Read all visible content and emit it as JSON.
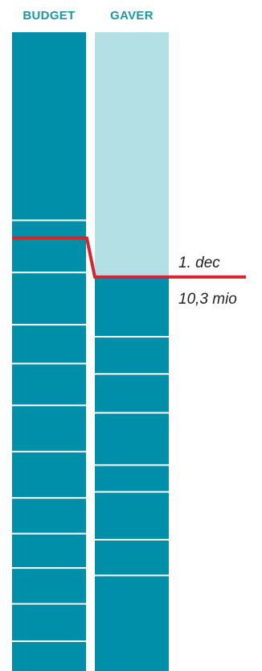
{
  "chart_data": {
    "type": "bar",
    "title": "",
    "xlabel": "",
    "ylabel": "",
    "categories": [
      "BUDGET",
      "GAVER"
    ],
    "series": [
      {
        "segments": [
          6.3,
          1.75,
          1.75,
          1.3,
          1.4,
          1.55,
          1.55,
          1.2,
          1.15,
          1.2,
          1.25,
          1.0
        ]
      },
      {
        "segments": [
          2.0,
          1.25,
          1.3,
          1.75,
          0.9,
          1.6,
          1.2,
          5.0
        ]
      }
    ],
    "ylim": [
      0,
      21.4
    ],
    "highlight": {
      "budget_level": 14.5,
      "donations_level": 13.2,
      "label_date": "1. dec",
      "label_value": "10,3 mio"
    },
    "colors": {
      "budget": "#008fa8",
      "donations_received": "#008fa8",
      "donations_remaining": "#b3e0e5",
      "marker_line": "#d9242f",
      "labels": "#1a96ad",
      "annotation": "#222222"
    }
  }
}
